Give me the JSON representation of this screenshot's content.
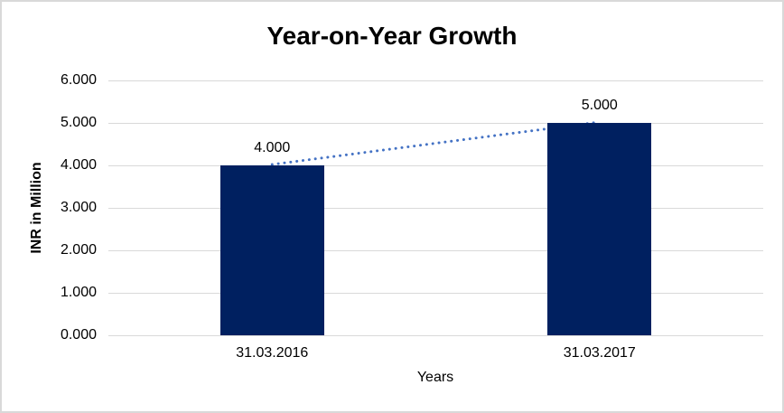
{
  "chart_data": {
    "type": "bar",
    "title": "Year-on-Year Growth",
    "categories": [
      "31.03.2016",
      "31.03.2017"
    ],
    "values": [
      4.0,
      5.0
    ],
    "data_labels": [
      "4.000",
      "5.000"
    ],
    "xlabel": "Years",
    "ylabel": "INR in Million",
    "ylim": [
      0,
      6
    ],
    "ytick_labels": [
      "0.000",
      "1.000",
      "2.000",
      "3.000",
      "4.000",
      "5.000",
      "6.000"
    ],
    "grid": true,
    "legend_position": "none",
    "trendline": {
      "style": "dotted",
      "from": {
        "category": "31.03.2016",
        "value": 4.0
      },
      "to": {
        "category": "31.03.2017",
        "value": 5.0
      }
    },
    "colors": {
      "bar": "#002060",
      "trendline": "#4472C4",
      "gridline": "#D9D9D9",
      "text": "#000000",
      "border": "#D9D9D9",
      "background": "#FFFFFF"
    }
  }
}
